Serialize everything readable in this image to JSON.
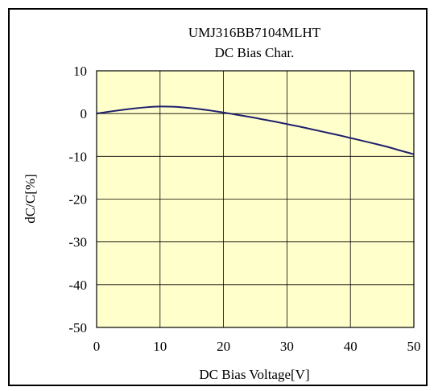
{
  "chart_data": {
    "type": "line",
    "title": "UMJ316BB7104MLHT",
    "subtitle": "DC Bias Char.",
    "xlabel": "DC Bias Voltage[V]",
    "ylabel": "dC/C[%]",
    "xlim": [
      0,
      50
    ],
    "ylim": [
      -50,
      10
    ],
    "x_ticks": [
      0,
      10,
      20,
      30,
      40,
      50
    ],
    "y_ticks": [
      10,
      0,
      -10,
      -20,
      -30,
      -40,
      -50
    ],
    "grid": true,
    "legend": "none",
    "colors": {
      "plot_bg": "#ffffcc",
      "line": "#1f1f6e",
      "grid": "#000000"
    },
    "series": [
      {
        "x": [
          0,
          2,
          4,
          6,
          8,
          10,
          12,
          14,
          16,
          18,
          20,
          22,
          24,
          26,
          28,
          30,
          32,
          34,
          36,
          38,
          40,
          42,
          44,
          46,
          48,
          50
        ],
        "values": [
          0,
          0.45,
          0.85,
          1.2,
          1.5,
          1.65,
          1.6,
          1.4,
          1.1,
          0.7,
          0.25,
          -0.25,
          -0.75,
          -1.3,
          -1.85,
          -2.45,
          -3.05,
          -3.7,
          -4.35,
          -5.0,
          -5.7,
          -6.4,
          -7.1,
          -7.85,
          -8.7,
          -9.5
        ]
      }
    ]
  }
}
